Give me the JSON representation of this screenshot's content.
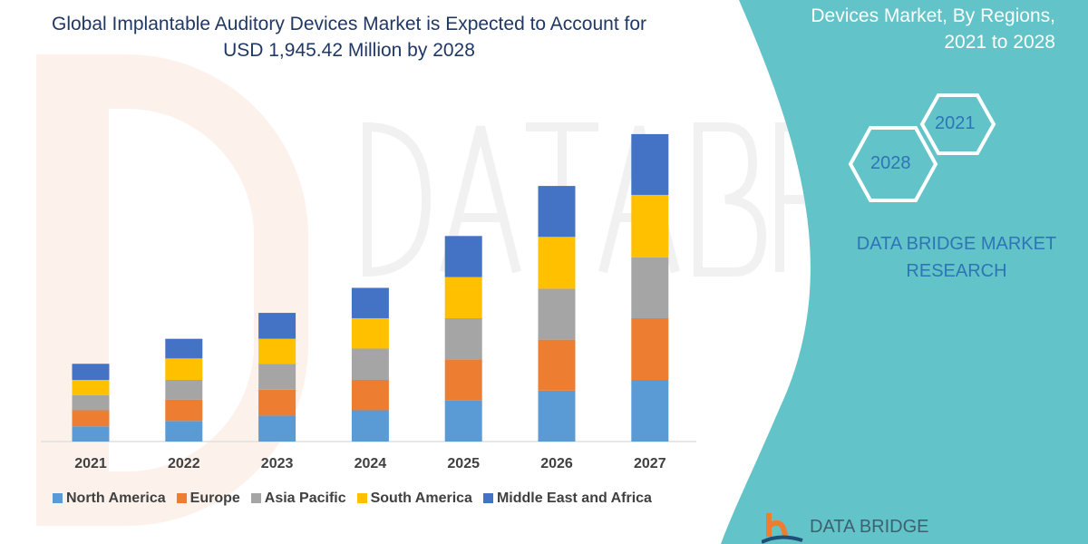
{
  "chart_data": {
    "type": "bar",
    "stacked": true,
    "title": "Global Implantable Auditory Devices Market is Expected to Account for USD 1,945.42 Million by 2028",
    "categories": [
      "2021",
      "2022",
      "2023",
      "2024",
      "2025",
      "2026",
      "2027"
    ],
    "series": [
      {
        "name": "North America",
        "color": "#5b9bd5",
        "values": [
          17,
          23,
          29,
          35,
          46,
          57,
          69
        ]
      },
      {
        "name": "Europe",
        "color": "#ed7d31",
        "values": [
          18,
          24,
          29,
          34,
          46,
          57,
          69
        ]
      },
      {
        "name": "Asia Pacific",
        "color": "#a5a5a5",
        "values": [
          17,
          22,
          29,
          35,
          46,
          57,
          68
        ]
      },
      {
        "name": "South America",
        "color": "#ffc000",
        "values": [
          17,
          24,
          28,
          34,
          46,
          58,
          70
        ]
      },
      {
        "name": "Middle East and Africa",
        "color": "#4472c4",
        "values": [
          18,
          22,
          29,
          34,
          46,
          57,
          68
        ]
      }
    ],
    "ylim": [
      0,
      350
    ],
    "y_axis_shown": false,
    "grid": false,
    "legend_position": "bottom"
  },
  "side_panel": {
    "title_lines": [
      "Devices Market, By Regions,",
      "2021 to 2028"
    ],
    "hex_labels": [
      "2021",
      "2028"
    ],
    "company_lines": [
      "DATA BRIDGE MARKET",
      "RESEARCH"
    ],
    "logo_text": "DATA BRIDGE",
    "color": "#62c3c8"
  },
  "watermark": "DATA BRIDGE"
}
